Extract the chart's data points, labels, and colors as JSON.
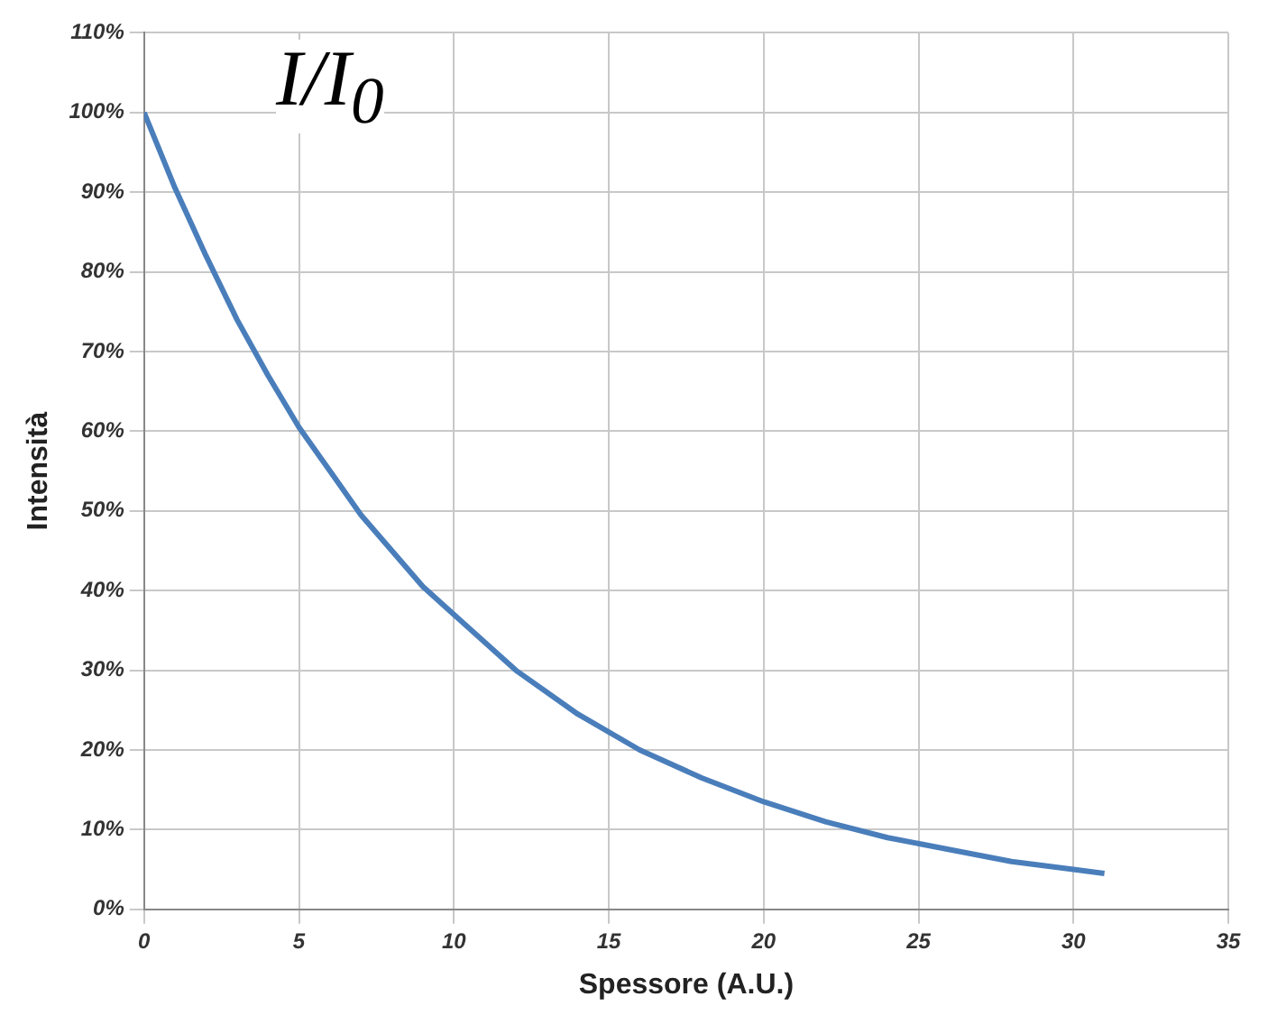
{
  "chart_data": {
    "type": "line",
    "xlabel": "Spessore (A.U.)",
    "ylabel": "Intensità",
    "annotations": [
      "I/I$_{0}$"
    ],
    "x": [
      0,
      1,
      2,
      3,
      4,
      5,
      6,
      7,
      8,
      9,
      10,
      12,
      14,
      16,
      18,
      20,
      22,
      24,
      26,
      28,
      30,
      31
    ],
    "series": [
      {
        "color": "#4a7ebb",
        "values": [
          100,
          90.5,
          82,
          74,
          67,
          60.5,
          55,
          49.5,
          45,
          40.5,
          37,
          30,
          24.5,
          20,
          16.5,
          13.5,
          11,
          9,
          7.5,
          6,
          5,
          4.5
        ]
      }
    ],
    "xlim": [
      0,
      35
    ],
    "xticks": [
      0,
      5,
      10,
      15,
      20,
      25,
      30,
      35
    ],
    "ylim": [
      0,
      110
    ],
    "yticks": [
      {
        "value": 0,
        "label": "0%"
      },
      {
        "value": 10,
        "label": "10%"
      },
      {
        "value": 20,
        "label": "20%"
      },
      {
        "value": 30,
        "label": "30%"
      },
      {
        "value": 40,
        "label": "40%"
      },
      {
        "value": 50,
        "label": "50%"
      },
      {
        "value": 60,
        "label": "60%"
      },
      {
        "value": 70,
        "label": "70%"
      },
      {
        "value": 80,
        "label": "80%"
      },
      {
        "value": 90,
        "label": "90%"
      },
      {
        "value": 100,
        "label": "100%"
      },
      {
        "value": 110,
        "label": "110%"
      }
    ],
    "grid": true,
    "legend": false,
    "marker": "none",
    "line_style": "solid"
  }
}
